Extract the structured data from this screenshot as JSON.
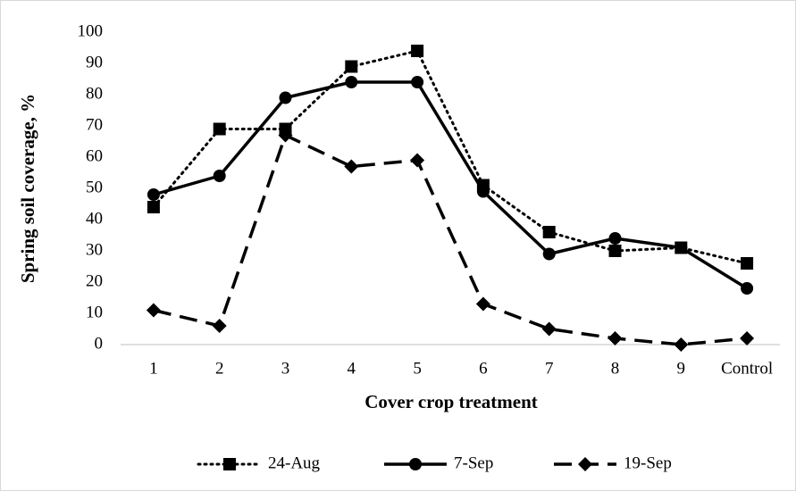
{
  "chart_data": {
    "type": "line",
    "xlabel": "Cover crop treatment",
    "ylabel": "Spring soil coverage, %",
    "categories": [
      "1",
      "2",
      "3",
      "4",
      "5",
      "6",
      "7",
      "8",
      "9",
      "Control"
    ],
    "series": [
      {
        "name": "24-Aug",
        "color": "#000000",
        "line_style": "dotted",
        "marker": "square",
        "values": [
          44,
          69,
          69,
          89,
          94,
          51,
          36,
          30,
          31,
          26
        ]
      },
      {
        "name": "7-Sep",
        "color": "#000000",
        "line_style": "solid",
        "marker": "circle",
        "values": [
          48,
          54,
          79,
          84,
          84,
          49,
          29,
          34,
          31,
          18
        ]
      },
      {
        "name": "19-Sep",
        "color": "#000000",
        "line_style": "dashed",
        "marker": "diamond",
        "values": [
          11,
          6,
          67,
          57,
          59,
          13,
          5,
          2,
          0,
          2
        ]
      }
    ],
    "ylim": [
      0,
      100
    ],
    "yticks": [
      0,
      10,
      20,
      30,
      40,
      50,
      60,
      70,
      80,
      90,
      100
    ],
    "grid": false,
    "legend": "bottom"
  }
}
